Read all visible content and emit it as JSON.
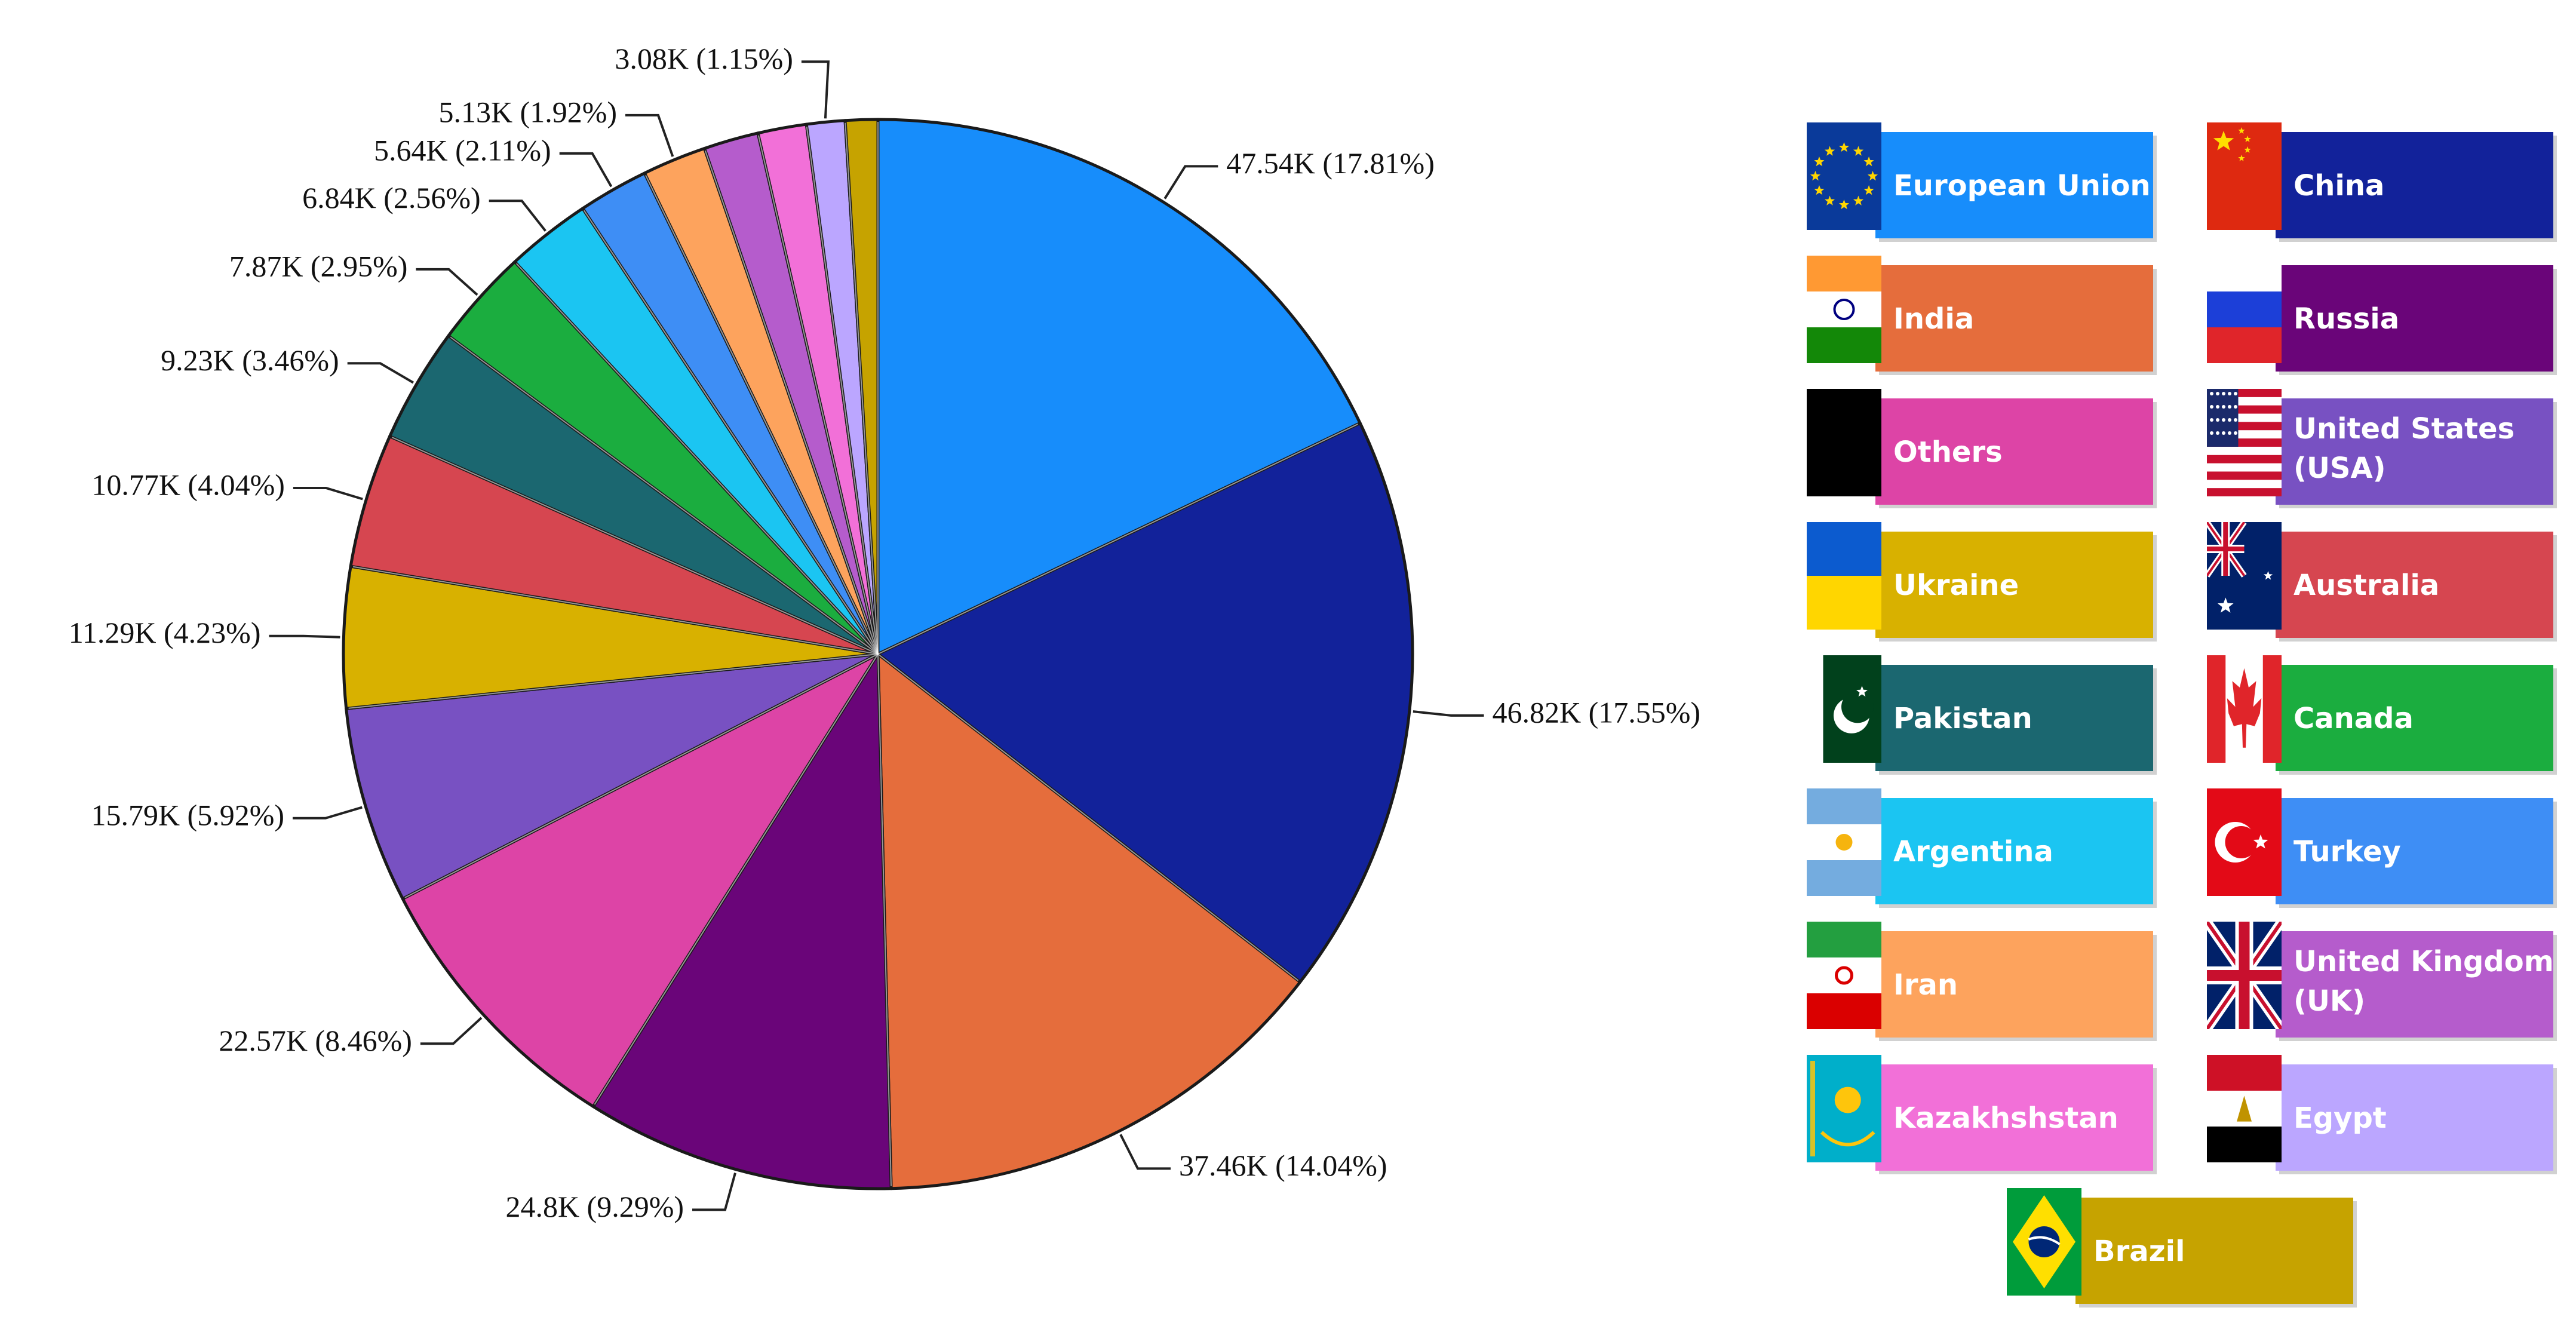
{
  "chart_data": {
    "type": "pie",
    "slices": [
      {
        "label": "European Union",
        "value": 47.54,
        "value_label": "47.54K (17.81%)",
        "color": "#178dfb",
        "flag": "european-union-flag"
      },
      {
        "label": "China",
        "value": 46.82,
        "value_label": "46.82K (17.55%)",
        "color": "#12229a",
        "flag": "china-flag"
      },
      {
        "label": "India",
        "value": 37.46,
        "value_label": "37.46K (14.04%)",
        "color": "#e56d3c",
        "flag": "india-flag"
      },
      {
        "label": "Russia",
        "value": 24.8,
        "value_label": "24.8K (9.29%)",
        "color": "#6a0579",
        "flag": "russia-flag"
      },
      {
        "label": "Others",
        "value": 22.57,
        "value_label": "22.57K (8.46%)",
        "color": "#dd44a6",
        "flag": "others-black-flag"
      },
      {
        "label": "United States (USA)",
        "value": 15.79,
        "value_label": "15.79K (5.92%)",
        "color": "#7851c2",
        "flag": "usa-flag"
      },
      {
        "label": "Ukraine",
        "value": 11.29,
        "value_label": "11.29K (4.23%)",
        "color": "#d8b100",
        "flag": "ukraine-flag"
      },
      {
        "label": "Australia",
        "value": 10.77,
        "value_label": "10.77K (4.04%)",
        "color": "#d64650",
        "flag": "australia-flag"
      },
      {
        "label": "Pakistan",
        "value": 9.23,
        "value_label": "9.23K (3.46%)",
        "color": "#1b6770",
        "flag": "pakistan-flag"
      },
      {
        "label": "Canada",
        "value": 7.87,
        "value_label": "7.87K (2.95%)",
        "color": "#1bad3f",
        "flag": "canada-flag"
      },
      {
        "label": "Argentina",
        "value": 6.84,
        "value_label": "6.84K (2.56%)",
        "color": "#1bc5f2",
        "flag": "argentina-flag"
      },
      {
        "label": "Turkey",
        "value": 5.64,
        "value_label": "5.64K (2.11%)",
        "color": "#3e8ef5",
        "flag": "turkey-flag"
      },
      {
        "label": "Iran",
        "value": 5.13,
        "value_label": "5.13K (1.92%)",
        "color": "#fda35d",
        "flag": "iran-flag"
      },
      {
        "label": "United Kingdom (UK)",
        "value": 4.4,
        "value_label": "",
        "color": "#b55ccc",
        "flag": "uk-flag"
      },
      {
        "label": "Kazakhshstan",
        "value": 3.9,
        "value_label": "",
        "color": "#f270d8",
        "flag": "kazakhstan-flag"
      },
      {
        "label": "Egypt",
        "value": 3.08,
        "value_label": "3.08K (1.15%)",
        "color": "#bba6ff",
        "flag": "egypt-flag"
      },
      {
        "label": "Brazil",
        "value": 2.6,
        "value_label": "",
        "color": "#c6a300",
        "flag": "brazil-flag"
      }
    ],
    "legend_placement": "right",
    "title": ""
  }
}
